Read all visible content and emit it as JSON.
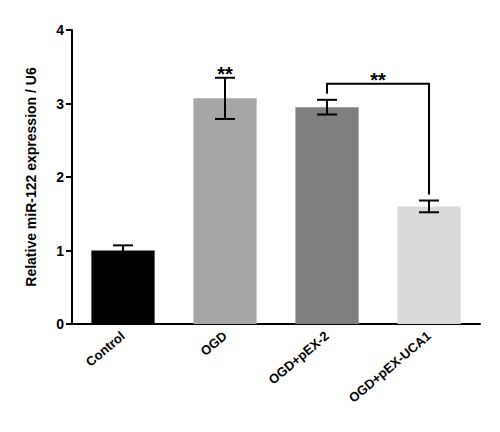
{
  "chart_data": {
    "type": "bar",
    "y_label": "Relative miR-122 expression / U6",
    "categories": [
      "Control",
      "OGD",
      "OGD+pEX-2",
      "OGD+pEX-UCA1"
    ],
    "values": [
      1.0,
      3.07,
      2.95,
      1.6
    ],
    "errors": [
      0.07,
      0.28,
      0.1,
      0.08
    ],
    "colors": [
      "#000000",
      "#a6a6a6",
      "#7f7f7f",
      "#d9d9d9"
    ],
    "ylim": [
      0,
      4
    ],
    "yticks": [
      0,
      1,
      2,
      3,
      4
    ],
    "grid": false,
    "annotations": [
      {
        "text": "**",
        "category": "OGD"
      },
      {
        "text": "**",
        "from": "OGD+pEX-2",
        "to": "OGD+pEX-UCA1"
      }
    ]
  }
}
